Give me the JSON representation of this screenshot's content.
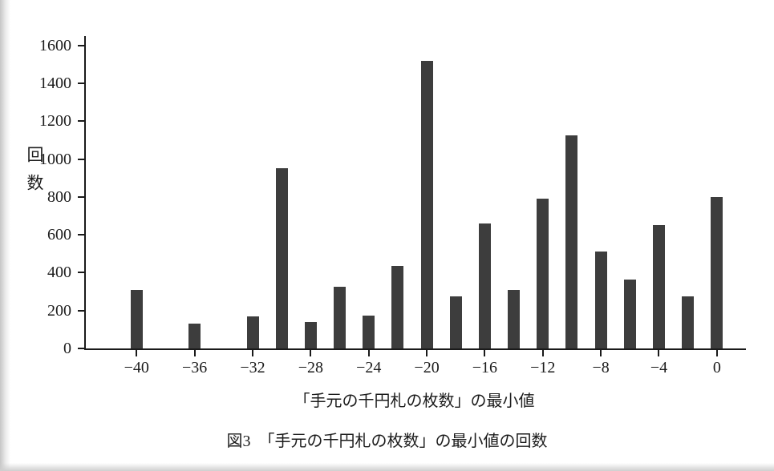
{
  "figure": {
    "caption": "図3　「手元の千円札の枚数」の最小値の回数"
  },
  "chart_data": {
    "type": "bar",
    "title": "",
    "xlabel": "「手元の千円札の枚数」の最小値",
    "ylabel": "回数",
    "x": [
      -40,
      -36,
      -32,
      -30,
      -28,
      -26,
      -24,
      -22,
      -20,
      -18,
      -16,
      -14,
      -12,
      -10,
      -8,
      -6,
      -4,
      -2,
      0
    ],
    "values": [
      310,
      130,
      170,
      950,
      140,
      325,
      175,
      435,
      1520,
      275,
      660,
      310,
      790,
      1125,
      510,
      365,
      650,
      275,
      800
    ],
    "x_ticks": [
      -40,
      -36,
      -32,
      -28,
      -24,
      -20,
      -16,
      -12,
      -8,
      -4,
      0
    ],
    "x_tick_labels": [
      "−40",
      "−36",
      "−32",
      "−28",
      "−24",
      "−20",
      "−16",
      "−12",
      "−8",
      "−4",
      "0"
    ],
    "y_ticks": [
      0,
      200,
      400,
      600,
      800,
      1000,
      1200,
      1400,
      1600
    ],
    "xlim": [
      -43.5,
      2
    ],
    "ylim": [
      0,
      1650
    ],
    "grid": false,
    "legend": "none",
    "bar_color": "#3d3d3d",
    "axis_color": "#1a1a1a"
  }
}
